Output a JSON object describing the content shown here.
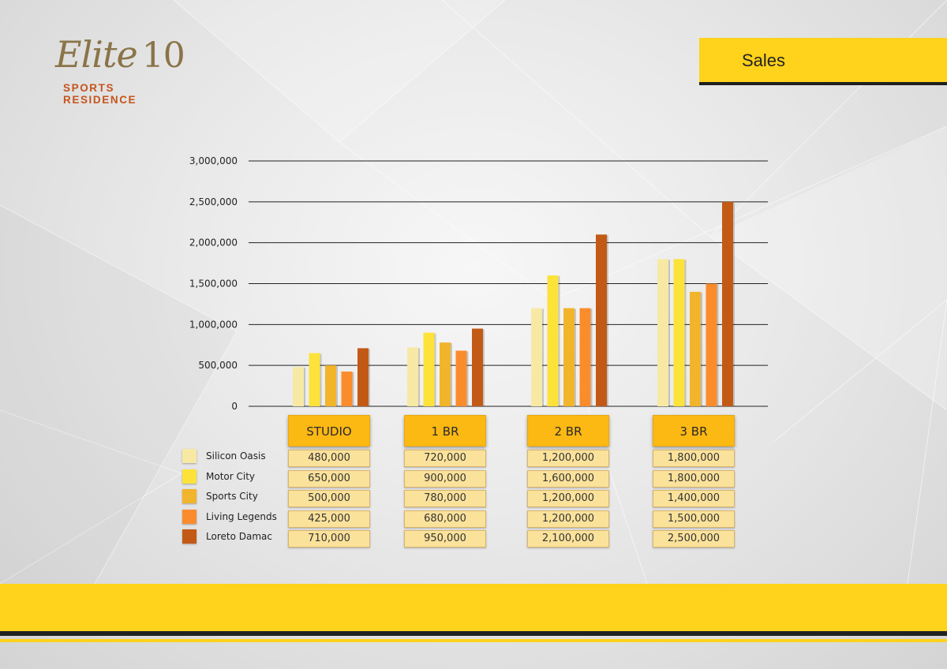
{
  "logo": {
    "word": "Elite",
    "number": "10",
    "subtitle": "SPORTS RESIDENCE"
  },
  "header": {
    "title": "Sales"
  },
  "colors": {
    "accent": "#ffd21b",
    "header_cell": "#fcb813",
    "value_cell": "#fbe29b",
    "series": [
      "#f7e9a4",
      "#fde23a",
      "#f2b42a",
      "#fb8c2c",
      "#c25a16"
    ]
  },
  "chart_data": {
    "type": "bar",
    "title": "Sales",
    "categories": [
      "STUDIO",
      "1 BR",
      "2 BR",
      "3 BR"
    ],
    "series": [
      {
        "name": "Silicon Oasis",
        "values": [
          480000,
          720000,
          1200000,
          1800000
        ],
        "labels": [
          "480,000",
          "720,000",
          "1,200,000",
          "1,800,000"
        ]
      },
      {
        "name": "Motor City",
        "values": [
          650000,
          900000,
          1600000,
          1800000
        ],
        "labels": [
          "650,000",
          "900,000",
          "1,600,000",
          "1,800,000"
        ]
      },
      {
        "name": "Sports City",
        "values": [
          500000,
          780000,
          1200000,
          1400000
        ],
        "labels": [
          "500,000",
          "780,000",
          "1,200,000",
          "1,400,000"
        ]
      },
      {
        "name": "Living Legends",
        "values": [
          425000,
          680000,
          1200000,
          1500000
        ],
        "labels": [
          "425,000",
          "680,000",
          "1,200,000",
          "1,500,000"
        ]
      },
      {
        "name": "Loreto Damac",
        "values": [
          710000,
          950000,
          2100000,
          2500000
        ],
        "labels": [
          "710,000",
          "950,000",
          "2,100,000",
          "2,500,000"
        ]
      }
    ],
    "ylim": [
      0,
      3000000
    ],
    "yticks": [
      0,
      500000,
      1000000,
      1500000,
      2000000,
      2500000,
      3000000
    ],
    "ytick_labels": [
      "0",
      "500,000",
      "1,000,000",
      "1,500,000",
      "2,000,000",
      "2,500,000",
      "3,000,000"
    ],
    "grid": true,
    "legend": "bottom-left"
  }
}
